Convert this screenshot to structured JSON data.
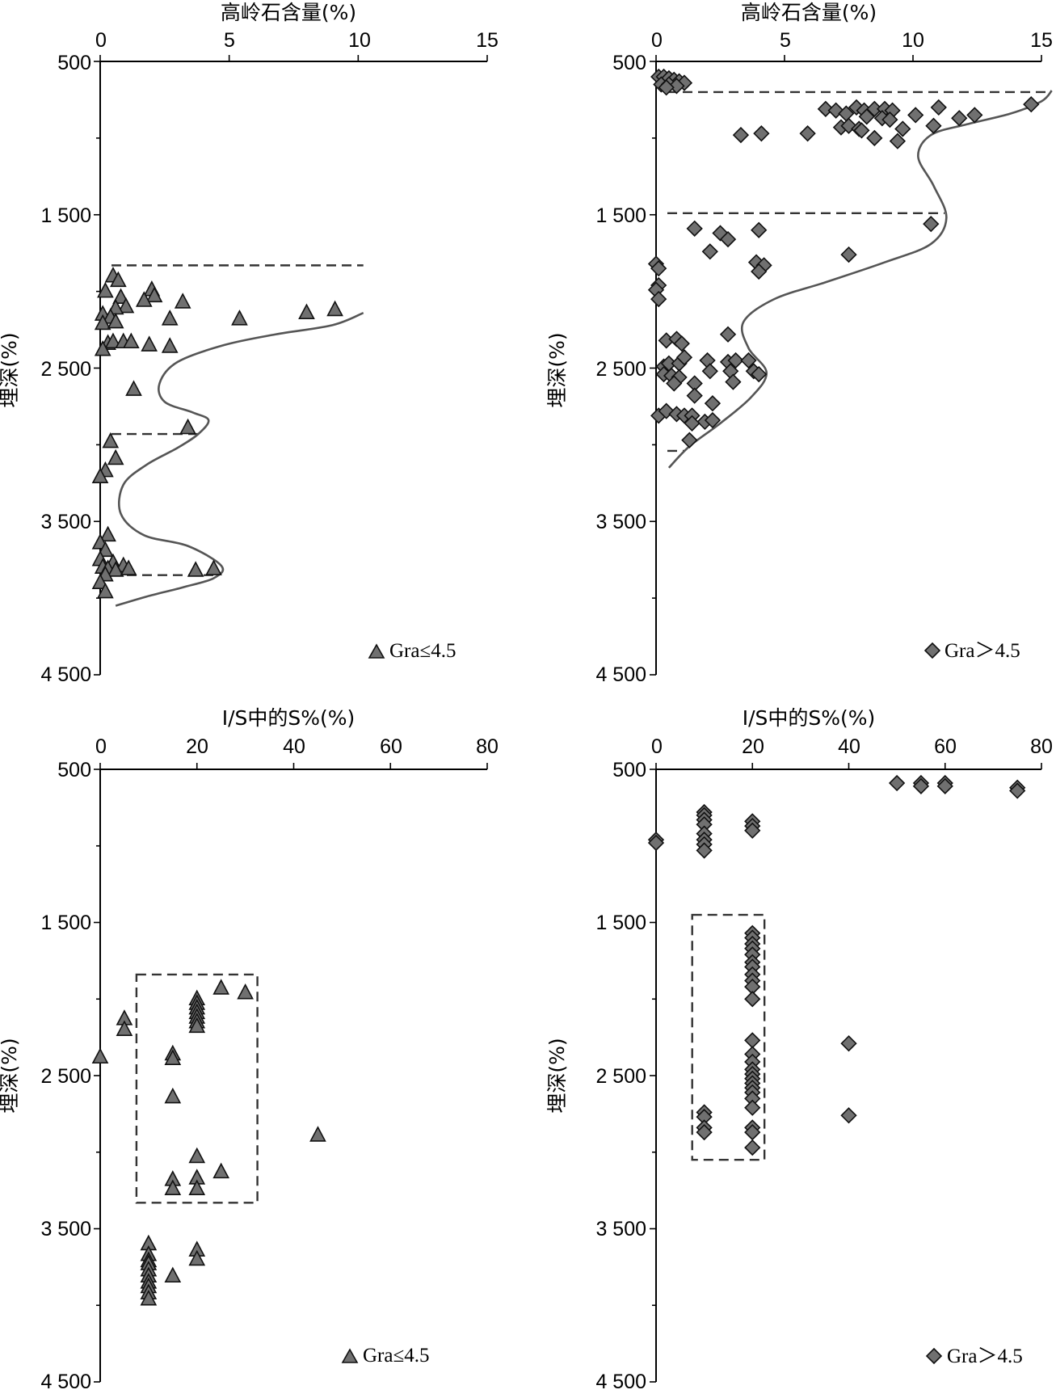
{
  "chart_data": [
    {
      "id": "p1",
      "type": "scatter",
      "xlabel": "高岭石含量(%)",
      "ylabel": "埋深(%)",
      "xlim": [
        0,
        15
      ],
      "ylim": [
        500,
        4500
      ],
      "xticks": [
        "0",
        "5",
        "10",
        "15"
      ],
      "yticks": [
        "500",
        "1 500",
        "2 500",
        "3 500",
        "4 500"
      ],
      "legend": "Gra≤4.5",
      "legend_position": "bottom-right",
      "marker": "triangle",
      "points": [
        [
          0.5,
          1900
        ],
        [
          0.7,
          1930
        ],
        [
          0.2,
          2000
        ],
        [
          2.0,
          1990
        ],
        [
          2.1,
          2030
        ],
        [
          1.7,
          2060
        ],
        [
          0.8,
          2040
        ],
        [
          3.2,
          2070
        ],
        [
          1.0,
          2100
        ],
        [
          0.6,
          2110
        ],
        [
          0.1,
          2150
        ],
        [
          0.4,
          2170
        ],
        [
          2.7,
          2180
        ],
        [
          5.4,
          2180
        ],
        [
          8.0,
          2140
        ],
        [
          9.1,
          2120
        ],
        [
          0.1,
          2210
        ],
        [
          0.6,
          2200
        ],
        [
          0.3,
          2340
        ],
        [
          0.5,
          2330
        ],
        [
          0.9,
          2330
        ],
        [
          1.2,
          2330
        ],
        [
          1.9,
          2350
        ],
        [
          2.7,
          2360
        ],
        [
          0.1,
          2380
        ],
        [
          1.3,
          2640
        ],
        [
          3.4,
          2890
        ],
        [
          0.4,
          2980
        ],
        [
          0.6,
          3090
        ],
        [
          0.2,
          3170
        ],
        [
          0.0,
          3210
        ],
        [
          0.3,
          3590
        ],
        [
          0.0,
          3640
        ],
        [
          0.2,
          3690
        ],
        [
          0.0,
          3750
        ],
        [
          0.5,
          3770
        ],
        [
          0.9,
          3790
        ],
        [
          0.1,
          3800
        ],
        [
          0.3,
          3810
        ],
        [
          0.6,
          3820
        ],
        [
          1.1,
          3810
        ],
        [
          0.2,
          3850
        ],
        [
          3.7,
          3820
        ],
        [
          4.4,
          3810
        ],
        [
          0.0,
          3900
        ],
        [
          0.2,
          3960
        ]
      ],
      "boundaries": [
        1830,
        2930,
        3850
      ],
      "trend": [
        [
          10.2,
          2140
        ],
        [
          9.0,
          2220
        ],
        [
          6.8,
          2280
        ],
        [
          4.8,
          2350
        ],
        [
          3.0,
          2460
        ],
        [
          2.3,
          2600
        ],
        [
          2.5,
          2720
        ],
        [
          3.6,
          2790
        ],
        [
          4.2,
          2840
        ],
        [
          3.8,
          2930
        ],
        [
          3.0,
          3020
        ],
        [
          1.8,
          3130
        ],
        [
          0.9,
          3260
        ],
        [
          0.8,
          3450
        ],
        [
          1.7,
          3590
        ],
        [
          3.4,
          3660
        ],
        [
          4.7,
          3790
        ],
        [
          4.4,
          3870
        ],
        [
          3.2,
          3930
        ],
        [
          1.8,
          3990
        ],
        [
          0.6,
          4050
        ]
      ]
    },
    {
      "id": "p2",
      "type": "scatter",
      "xlabel": "高岭石含量(%)",
      "ylabel": "埋深(%)",
      "xlim": [
        0,
        15
      ],
      "ylim": [
        500,
        4500
      ],
      "xticks": [
        "0",
        "5",
        "10",
        "15"
      ],
      "yticks": [
        "500",
        "1 500",
        "2 500",
        "3 500",
        "4 500"
      ],
      "legend": "Gra＞4.5",
      "legend_position": "bottom-right",
      "marker": "diamond",
      "points": [
        [
          0.1,
          600
        ],
        [
          0.3,
          600
        ],
        [
          0.5,
          610
        ],
        [
          0.7,
          620
        ],
        [
          0.9,
          630
        ],
        [
          1.1,
          640
        ],
        [
          0.2,
          650
        ],
        [
          0.5,
          650
        ],
        [
          0.8,
          660
        ],
        [
          0.4,
          670
        ],
        [
          6.6,
          810
        ],
        [
          7.0,
          820
        ],
        [
          7.4,
          840
        ],
        [
          7.8,
          800
        ],
        [
          8.1,
          820
        ],
        [
          8.5,
          810
        ],
        [
          8.9,
          810
        ],
        [
          9.2,
          820
        ],
        [
          8.2,
          860
        ],
        [
          8.8,
          870
        ],
        [
          9.1,
          880
        ],
        [
          10.1,
          850
        ],
        [
          11.0,
          800
        ],
        [
          11.8,
          870
        ],
        [
          12.4,
          850
        ],
        [
          14.6,
          780
        ],
        [
          7.2,
          930
        ],
        [
          7.5,
          920
        ],
        [
          7.9,
          940
        ],
        [
          8.0,
          950
        ],
        [
          9.6,
          940
        ],
        [
          10.8,
          920
        ],
        [
          5.9,
          970
        ],
        [
          3.3,
          980
        ],
        [
          4.1,
          970
        ],
        [
          8.5,
          1000
        ],
        [
          9.4,
          1020
        ],
        [
          10.7,
          1560
        ],
        [
          1.5,
          1590
        ],
        [
          4.0,
          1600
        ],
        [
          2.5,
          1620
        ],
        [
          2.8,
          1660
        ],
        [
          2.1,
          1740
        ],
        [
          7.5,
          1760
        ],
        [
          3.9,
          1810
        ],
        [
          4.2,
          1830
        ],
        [
          4.0,
          1870
        ],
        [
          0.0,
          1820
        ],
        [
          0.1,
          1850
        ],
        [
          0.1,
          1960
        ],
        [
          0.0,
          1990
        ],
        [
          0.1,
          2050
        ],
        [
          2.8,
          2280
        ],
        [
          0.4,
          2320
        ],
        [
          0.8,
          2310
        ],
        [
          1.0,
          2340
        ],
        [
          0.3,
          2490
        ],
        [
          0.5,
          2470
        ],
        [
          0.9,
          2470
        ],
        [
          1.1,
          2430
        ],
        [
          2.0,
          2450
        ],
        [
          2.8,
          2460
        ],
        [
          3.1,
          2450
        ],
        [
          3.6,
          2450
        ],
        [
          0.3,
          2540
        ],
        [
          0.6,
          2550
        ],
        [
          0.9,
          2560
        ],
        [
          2.1,
          2520
        ],
        [
          2.9,
          2520
        ],
        [
          3.8,
          2520
        ],
        [
          4.0,
          2540
        ],
        [
          0.7,
          2600
        ],
        [
          1.5,
          2600
        ],
        [
          3.0,
          2590
        ],
        [
          1.5,
          2680
        ],
        [
          0.1,
          2810
        ],
        [
          0.4,
          2780
        ],
        [
          0.8,
          2800
        ],
        [
          1.1,
          2810
        ],
        [
          1.4,
          2810
        ],
        [
          1.9,
          2850
        ],
        [
          2.2,
          2840
        ],
        [
          1.4,
          2860
        ],
        [
          2.2,
          2730
        ],
        [
          1.3,
          2970
        ]
      ],
      "boundaries": [
        700,
        1490,
        3040
      ],
      "trend": [
        [
          15.4,
          690
        ],
        [
          15.0,
          760
        ],
        [
          13.8,
          840
        ],
        [
          12.1,
          910
        ],
        [
          10.7,
          980
        ],
        [
          10.2,
          1120
        ],
        [
          10.8,
          1310
        ],
        [
          11.3,
          1520
        ],
        [
          10.7,
          1690
        ],
        [
          8.9,
          1810
        ],
        [
          6.6,
          1940
        ],
        [
          4.6,
          2050
        ],
        [
          3.4,
          2200
        ],
        [
          3.6,
          2370
        ],
        [
          4.3,
          2530
        ],
        [
          3.7,
          2690
        ],
        [
          2.5,
          2860
        ],
        [
          1.3,
          3010
        ],
        [
          0.5,
          3150
        ]
      ]
    },
    {
      "id": "p3",
      "type": "scatter",
      "xlabel": "I/S中的S%(%)",
      "ylabel": "埋深(%)",
      "xlim": [
        0,
        80
      ],
      "ylim": [
        500,
        4500
      ],
      "xticks": [
        "0",
        "20",
        "40",
        "60",
        "80"
      ],
      "yticks": [
        "500",
        "1 500",
        "2 500",
        "3 500",
        "4 500"
      ],
      "legend": "Gra≤4.5",
      "legend_position": "bottom-right",
      "marker": "triangle",
      "points": [
        [
          25,
          1930
        ],
        [
          30,
          1960
        ],
        [
          20,
          2000
        ],
        [
          20,
          2030
        ],
        [
          20,
          2060
        ],
        [
          20,
          2090
        ],
        [
          20,
          2120
        ],
        [
          20,
          2150
        ],
        [
          20,
          2180
        ],
        [
          5,
          2130
        ],
        [
          5,
          2200
        ],
        [
          15,
          2360
        ],
        [
          15,
          2390
        ],
        [
          0,
          2380
        ],
        [
          15,
          2640
        ],
        [
          45,
          2890
        ],
        [
          20,
          3030
        ],
        [
          25,
          3130
        ],
        [
          15,
          3180
        ],
        [
          20,
          3170
        ],
        [
          15,
          3240
        ],
        [
          20,
          3240
        ],
        [
          10,
          3600
        ],
        [
          20,
          3640
        ],
        [
          10,
          3670
        ],
        [
          20,
          3700
        ],
        [
          10,
          3710
        ],
        [
          10,
          3730
        ],
        [
          10,
          3770
        ],
        [
          15,
          3810
        ],
        [
          10,
          3810
        ],
        [
          10,
          3850
        ],
        [
          10,
          3880
        ],
        [
          10,
          3920
        ],
        [
          10,
          3960
        ]
      ],
      "boundaries_box": {
        "x": [
          7.5,
          32.5
        ],
        "y": [
          1840,
          3330
        ]
      }
    },
    {
      "id": "p4",
      "type": "scatter",
      "xlabel": "I/S中的S%(%)",
      "ylabel": "埋深(%)",
      "xlim": [
        0,
        80
      ],
      "ylim": [
        500,
        4500
      ],
      "xticks": [
        "0",
        "20",
        "40",
        "60",
        "80"
      ],
      "yticks": [
        "500",
        "1 500",
        "2 500",
        "3 500",
        "4 500"
      ],
      "legend": "Gra＞4.5",
      "legend_position": "bottom-right",
      "marker": "diamond",
      "points": [
        [
          50,
          590
        ],
        [
          55,
          590
        ],
        [
          55,
          610
        ],
        [
          60,
          590
        ],
        [
          60,
          610
        ],
        [
          75,
          620
        ],
        [
          75,
          640
        ],
        [
          10,
          780
        ],
        [
          10,
          800
        ],
        [
          10,
          830
        ],
        [
          10,
          860
        ],
        [
          20,
          840
        ],
        [
          20,
          870
        ],
        [
          20,
          900
        ],
        [
          10,
          920
        ],
        [
          10,
          960
        ],
        [
          10,
          990
        ],
        [
          0,
          960
        ],
        [
          0,
          980
        ],
        [
          10,
          1030
        ],
        [
          20,
          1570
        ],
        [
          20,
          1600
        ],
        [
          20,
          1640
        ],
        [
          20,
          1670
        ],
        [
          20,
          1710
        ],
        [
          20,
          1760
        ],
        [
          20,
          1790
        ],
        [
          20,
          1840
        ],
        [
          20,
          1880
        ],
        [
          20,
          1920
        ],
        [
          20,
          2000
        ],
        [
          20,
          2270
        ],
        [
          20,
          2360
        ],
        [
          40,
          2290
        ],
        [
          20,
          2410
        ],
        [
          20,
          2460
        ],
        [
          20,
          2490
        ],
        [
          20,
          2520
        ],
        [
          20,
          2550
        ],
        [
          20,
          2580
        ],
        [
          20,
          2610
        ],
        [
          20,
          2650
        ],
        [
          20,
          2710
        ],
        [
          10,
          2740
        ],
        [
          40,
          2760
        ],
        [
          10,
          2770
        ],
        [
          10,
          2840
        ],
        [
          20,
          2840
        ],
        [
          10,
          2870
        ],
        [
          20,
          2870
        ],
        [
          20,
          2970
        ]
      ],
      "boundaries_box": {
        "x": [
          7.5,
          22.5
        ],
        "y": [
          1450,
          3050
        ]
      }
    }
  ]
}
